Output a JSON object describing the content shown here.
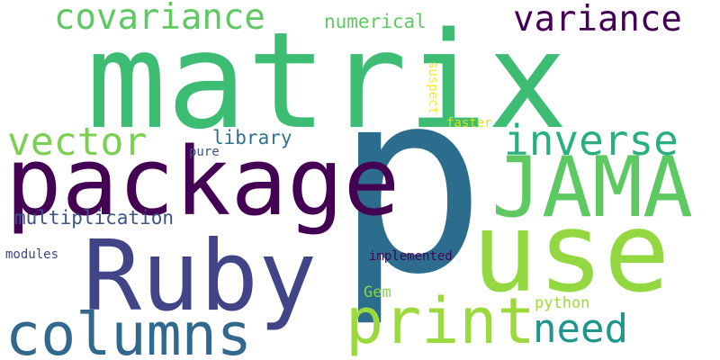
{
  "background": "#ffffff",
  "words": [
    {
      "key": "matrix",
      "text": "matrix",
      "color": "#3dbc74"
    },
    {
      "key": "p",
      "text": "p",
      "color": "#2c6d8e"
    },
    {
      "key": "package",
      "text": "package",
      "color": "#440154"
    },
    {
      "key": "Ruby",
      "text": "Ruby",
      "color": "#414487"
    },
    {
      "key": "use",
      "text": "use",
      "color": "#93d741"
    },
    {
      "key": "JAMA",
      "text": "JAMA",
      "color": "#5ec962"
    },
    {
      "key": "columns",
      "text": "columns",
      "color": "#31688e"
    },
    {
      "key": "print",
      "text": "print",
      "color": "#9bd93c"
    },
    {
      "key": "covariance",
      "text": "covariance",
      "color": "#5ec962"
    },
    {
      "key": "variance",
      "text": "variance",
      "color": "#440154"
    },
    {
      "key": "inverse",
      "text": "inverse",
      "color": "#2ab07f"
    },
    {
      "key": "vector",
      "text": "vector",
      "color": "#7ad151"
    },
    {
      "key": "need",
      "text": "need",
      "color": "#1f968b"
    },
    {
      "key": "multiplication",
      "text": "multiplication",
      "color": "#3b528b"
    },
    {
      "key": "library",
      "text": "library",
      "color": "#2c728e"
    },
    {
      "key": "numerical",
      "text": "numerical",
      "color": "#5ec962"
    },
    {
      "key": "Gem",
      "text": "Gem",
      "color": "#86d549"
    },
    {
      "key": "python",
      "text": "python",
      "color": "#a0da39"
    },
    {
      "key": "pure",
      "text": "pure",
      "color": "#3b528b"
    },
    {
      "key": "modules",
      "text": "modules",
      "color": "#3e4989"
    },
    {
      "key": "implemented",
      "text": "implemented",
      "color": "#440154"
    },
    {
      "key": "suspect",
      "text": "suspect",
      "color": "#fde725"
    },
    {
      "key": "faster",
      "text": "faster",
      "color": "#d8e219"
    }
  ]
}
